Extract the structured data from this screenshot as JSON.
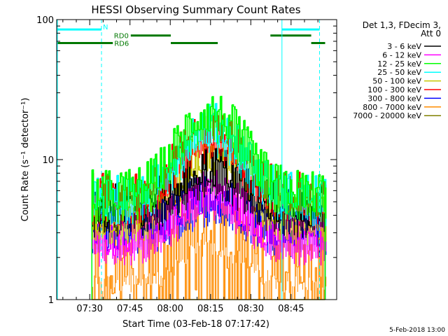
{
  "chart_data": {
    "type": "line",
    "title": "HESSI Observing Summary Count Rates",
    "xlabel": "Start Time (03-Feb-18 07:17:42)",
    "ylabel": "Count Rate (s⁻¹ detector⁻¹)",
    "y_scale": "log",
    "ylim": [
      1,
      100
    ],
    "xlim_minutes_of_day": [
      437.7,
      542.0
    ],
    "x_tick_labels": [
      {
        "m": 450,
        "label": "07:30"
      },
      {
        "m": 465,
        "label": "07:45"
      },
      {
        "m": 480,
        "label": "08:00"
      },
      {
        "m": 495,
        "label": "08:15"
      },
      {
        "m": 510,
        "label": "08:30"
      },
      {
        "m": 525,
        "label": "08:45"
      }
    ],
    "y_tick_labels": [
      {
        "v": 1,
        "label": "1"
      },
      {
        "v": 10,
        "label": "10"
      },
      {
        "v": 100,
        "label": "100"
      }
    ],
    "legend": {
      "placement": "right",
      "header_line1": "Det 1,3, FDecim 3,",
      "header_line2": "Att 0"
    },
    "series": [
      {
        "name": "3 - 6 keV",
        "color": "#000000",
        "base": 5.0,
        "peak": 9.5
      },
      {
        "name": "6 - 12 keV",
        "color": "#ff00ff",
        "base": 3.1,
        "peak": 6.5
      },
      {
        "name": "12 - 25 keV",
        "color": "#00ff00",
        "base": 6.3,
        "peak": 23.0
      },
      {
        "name": "25 - 50 keV",
        "color": "#00ffff",
        "base": 6.0,
        "peak": 19.0
      },
      {
        "name": "50 - 100 keV",
        "color": "#c8c800",
        "base": 4.4,
        "peak": 13.0
      },
      {
        "name": "100 - 300 keV",
        "color": "#ff0000",
        "base": 6.0,
        "peak": 17.0
      },
      {
        "name": "300 - 800 keV",
        "color": "#0000ff",
        "base": 3.6,
        "peak": 6.0
      },
      {
        "name": "800 - 7000 keV",
        "color": "#ff8c00",
        "base": 2.0,
        "peak": 3.7
      },
      {
        "name": "7000 - 20000 keV",
        "color": "#808000",
        "base": 1.0,
        "peak": 1.0
      }
    ],
    "data_interval_minutes": [
      450.8,
      537.7
    ],
    "flags": [
      {
        "label": "N",
        "color": "#00ffff",
        "intervals": [
          [
            437.7,
            454.4
          ],
          [
            521.5,
            535.6
          ]
        ],
        "level": 85
      },
      {
        "label": "RD0",
        "color": "#007800",
        "intervals": [
          [
            465.3,
            480.2
          ],
          [
            517.3,
            532.5
          ]
        ],
        "level": 77
      },
      {
        "label": "RD6",
        "color": "#007800",
        "intervals": [
          [
            437.7,
            458.6
          ],
          [
            480.2,
            497.7
          ],
          [
            532.5,
            537.7
          ]
        ],
        "level": 68
      }
    ],
    "cyan_markers": [
      {
        "m": 521.6,
        "style": "solid"
      },
      {
        "m": 454.4,
        "style": "dashed"
      },
      {
        "m": 535.6,
        "style": "dashed"
      }
    ]
  },
  "footer": {
    "timestamp": "5-Feb-2018 13:00"
  }
}
